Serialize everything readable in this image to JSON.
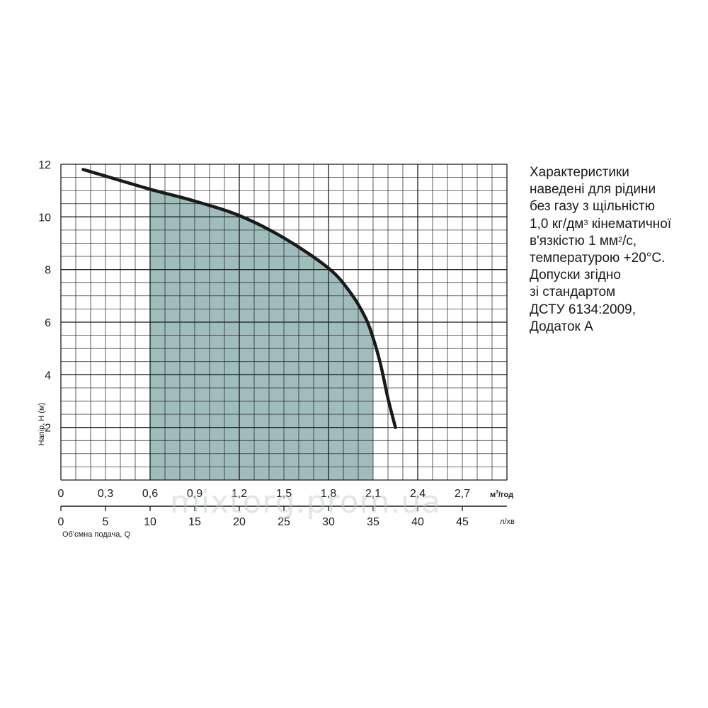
{
  "chart_data": {
    "type": "line",
    "y_axis": {
      "label": "Напір, Н (м)",
      "ticks": [
        "2",
        "4",
        "6",
        "8",
        "10",
        "12"
      ],
      "ylim": [
        0,
        12
      ]
    },
    "x_axis_primary": {
      "unit": "м³/год",
      "unit_base": "м",
      "unit_sup": "3",
      "unit_rest": "/год",
      "ticks": [
        "0",
        "0,3",
        "0,6",
        "0,9",
        "1,2",
        "1,5",
        "1,8",
        "2,1",
        "2,4",
        "2,7"
      ],
      "xlim": [
        0,
        3.0
      ]
    },
    "x_axis_secondary": {
      "label": "Об'ємна подача, Q",
      "unit": "л/хв",
      "ticks": [
        "0",
        "5",
        "10",
        "15",
        "20",
        "25",
        "30",
        "35",
        "40",
        "45"
      ]
    },
    "series": [
      {
        "x": [
          0.15,
          0.3,
          0.6,
          0.9,
          1.2,
          1.5,
          1.8,
          1.95,
          2.05,
          2.1,
          2.15,
          2.2,
          2.25
        ],
        "y": [
          11.8,
          11.55,
          11.05,
          10.6,
          10.05,
          9.2,
          8.05,
          7.1,
          6.15,
          5.4,
          4.4,
          3.1,
          2.0
        ]
      }
    ],
    "shaded_range": {
      "x": [
        0.6,
        2.1
      ]
    },
    "grid": true,
    "colors": {
      "curve": "#1a1a1a",
      "fill": "#9fbdbc",
      "grid": "#1a1a1a"
    }
  },
  "note": {
    "line1": "Характеристики",
    "line2": "наведені для рідини",
    "line3": "без газу з щільністю",
    "line4_a": "1,0 кг/дм",
    "line4_sup": "3",
    "line4_b": " кінематичної",
    "line5_a": "в'язкістю 1 мм",
    "line5_sup": "2",
    "line5_b": "/с,",
    "line6": "температурою +20°С.",
    "line7": "Допуски згідно",
    "line8": "зі стандартом",
    "line9": "ДСТУ 6134:2009,",
    "line10": "Додаток А"
  },
  "watermark": "mixtorg.prom.ua"
}
